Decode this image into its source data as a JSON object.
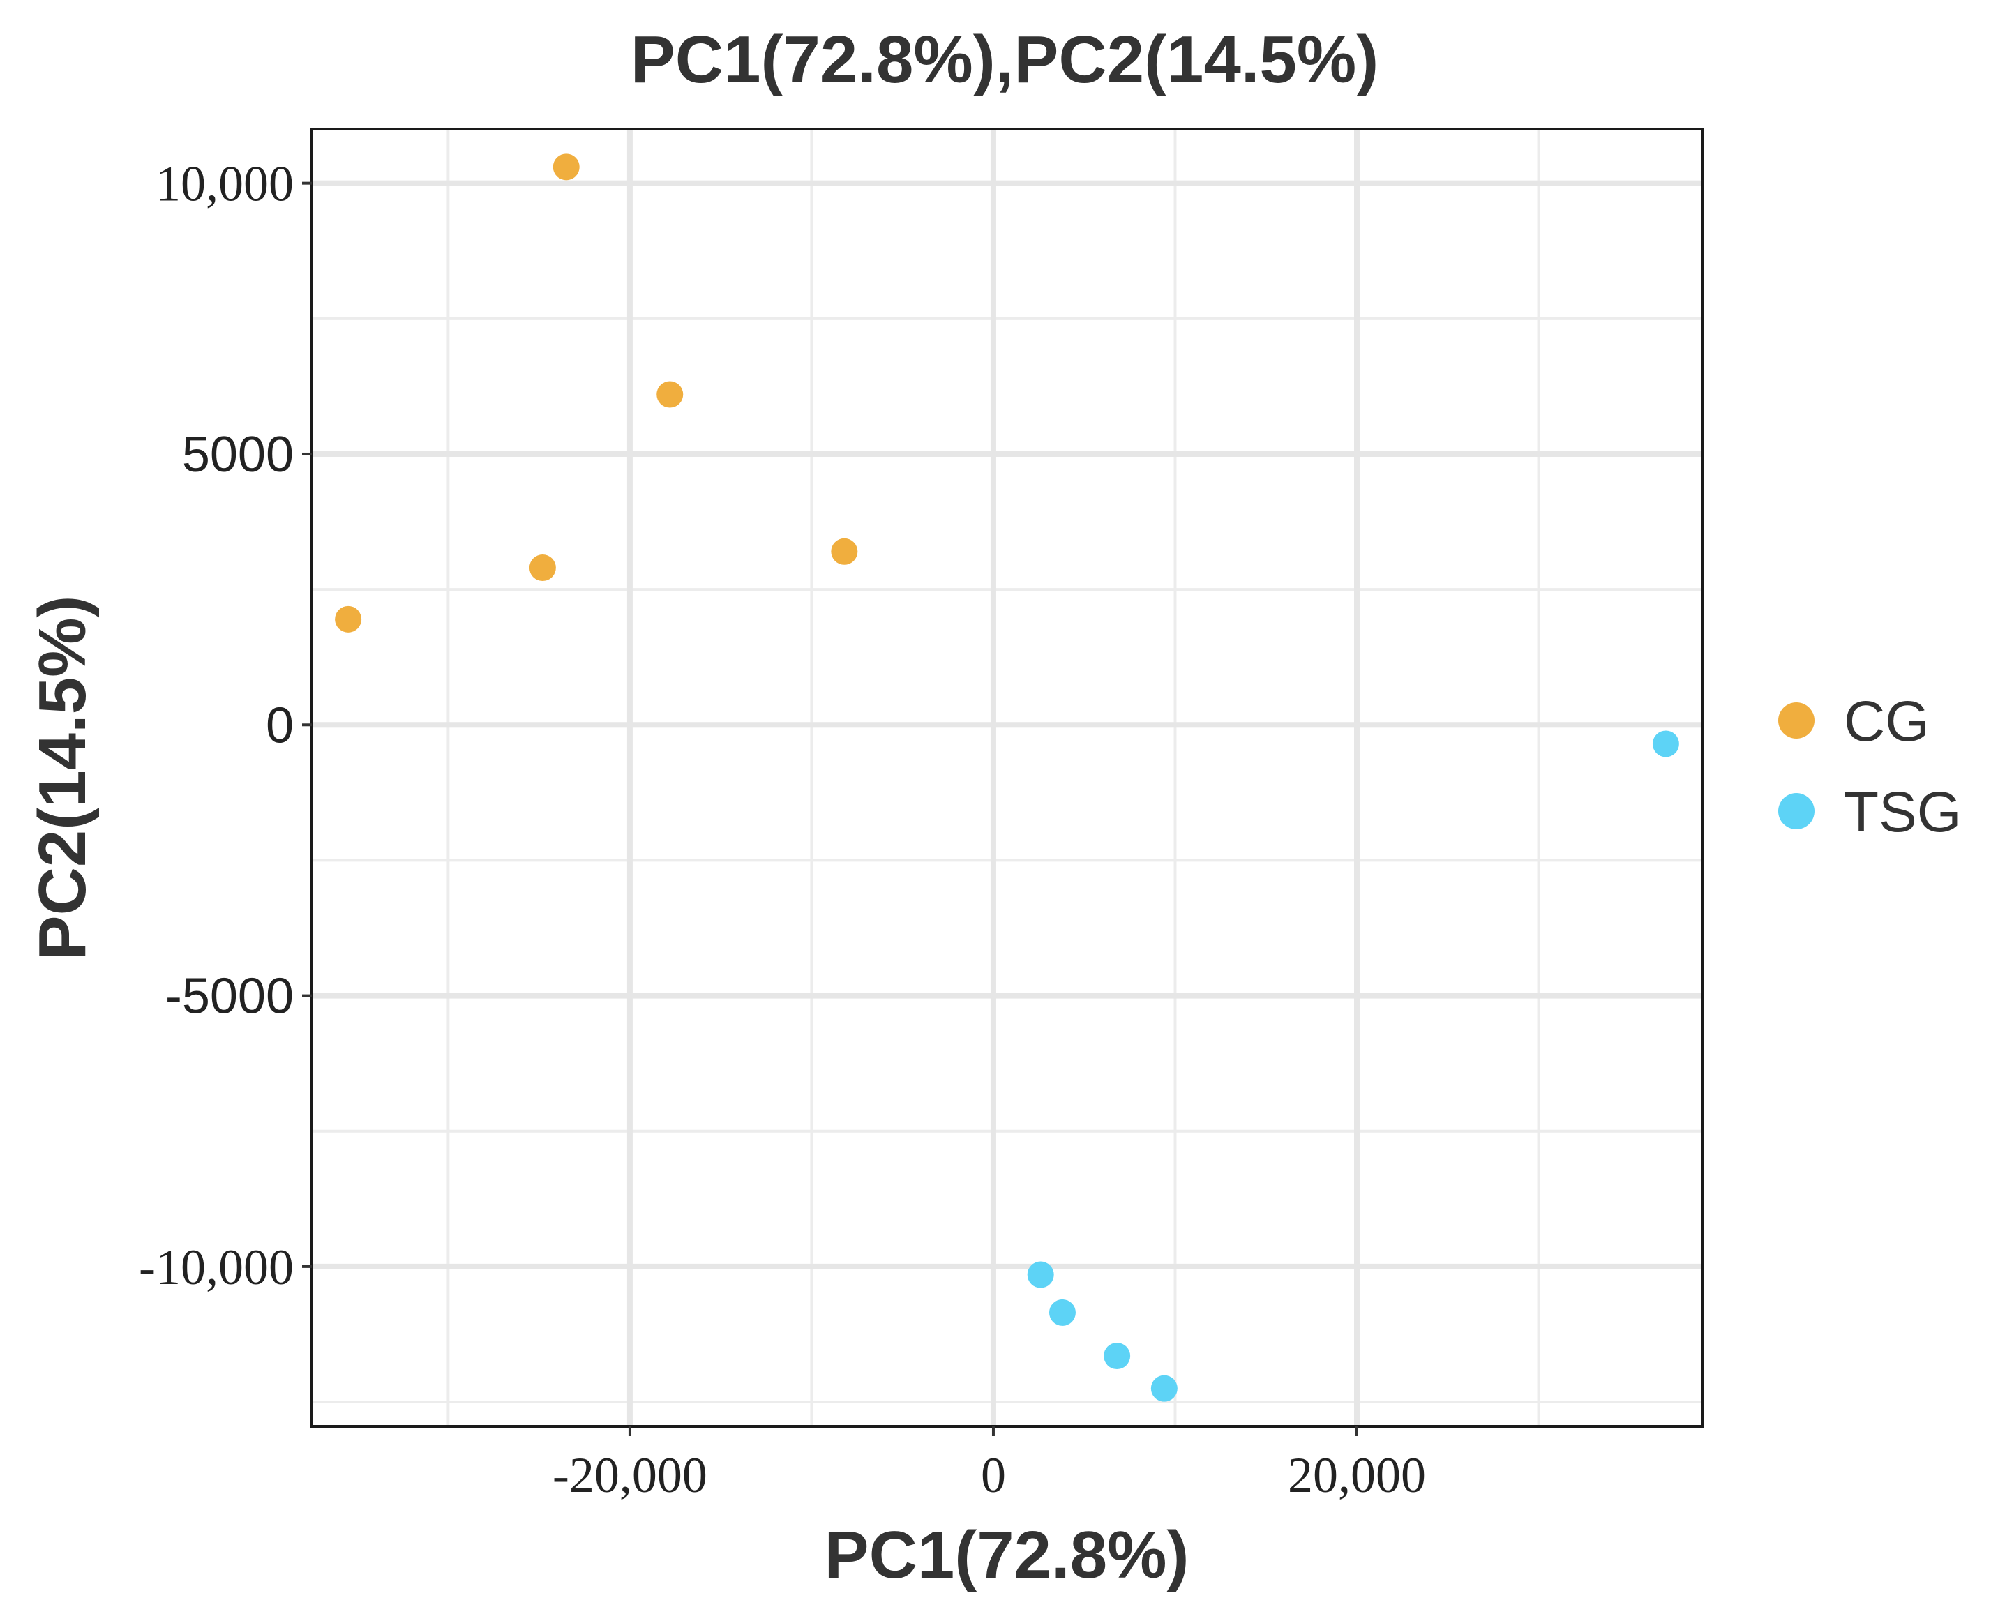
{
  "chart_data": {
    "type": "scatter",
    "title": "PC1(72.8%),PC2(14.5%)",
    "xlabel": "PC1(72.8%)",
    "ylabel": "PC2(14.5%)",
    "xlim": [
      -37500,
      39000
    ],
    "ylim": [
      -12950,
      11000
    ],
    "grid": true,
    "legend_position": "right",
    "x_ticks": [
      {
        "value": -20000,
        "label": "-20,000"
      },
      {
        "value": 0,
        "label": "0"
      },
      {
        "value": 20000,
        "label": "20,000"
      }
    ],
    "y_ticks": [
      {
        "value": 10000,
        "label": "10,000"
      },
      {
        "value": 5000,
        "label": "5000"
      },
      {
        "value": 0,
        "label": "0"
      },
      {
        "value": -5000,
        "label": "-5000"
      },
      {
        "value": -10000,
        "label": "-10,000"
      }
    ],
    "series": [
      {
        "name": "CG",
        "color": "#F0AE3E",
        "points": [
          {
            "x": -23500,
            "y": 10300
          },
          {
            "x": -17800,
            "y": 6100
          },
          {
            "x": -24800,
            "y": 2900
          },
          {
            "x": -8200,
            "y": 3200
          },
          {
            "x": -35500,
            "y": 1950
          }
        ]
      },
      {
        "name": "TSG",
        "color": "#5DD3F6",
        "points": [
          {
            "x": 37000,
            "y": -350
          },
          {
            "x": 2600,
            "y": -10150
          },
          {
            "x": 3800,
            "y": -10850
          },
          {
            "x": 6800,
            "y": -11650
          },
          {
            "x": 9400,
            "y": -12250
          }
        ]
      }
    ]
  }
}
